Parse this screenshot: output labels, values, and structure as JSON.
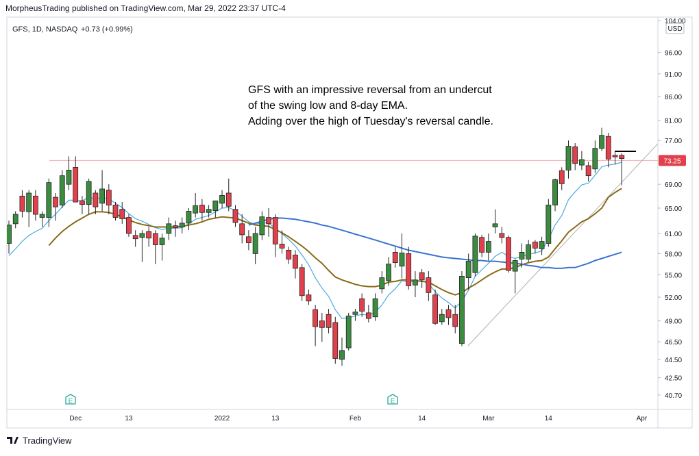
{
  "publisher_line": "MorpheusTrading published on TradingView.com, Mar 29, 2022 23:37 UTC-4",
  "footer_brand": "TradingView",
  "chart_data": {
    "type": "candlestick",
    "symbol_line": "GFS, 1D, NASDAQ",
    "change": "+0.73 (+0.99%)",
    "currency": "USD",
    "annotation": [
      "GFS with an impressive reversal from an undercut",
      "of the swing low and 8-day EMA.",
      "Adding over the high of Tuesday's reversal candle."
    ],
    "earnings_labels": [
      "E",
      "E"
    ],
    "log_scale": true,
    "grid": false,
    "ylim": [
      39.25,
      104.9
    ],
    "yticks": [
      {
        "value": 104,
        "label": "104.00"
      },
      {
        "value": 96,
        "label": "96.00"
      },
      {
        "value": 91,
        "label": "91.00"
      },
      {
        "value": 86,
        "label": "86.00"
      },
      {
        "value": 81,
        "label": "81.00"
      },
      {
        "value": 77,
        "label": "77.00"
      },
      {
        "value": 69,
        "label": "69.00"
      },
      {
        "value": 65,
        "label": "65.00"
      },
      {
        "value": 61,
        "label": "61.00"
      },
      {
        "value": 58,
        "label": "58.00"
      },
      {
        "value": 55,
        "label": "55.00"
      },
      {
        "value": 52,
        "label": "52.00"
      },
      {
        "value": 49,
        "label": "49.00"
      },
      {
        "value": 46.5,
        "label": "46.50"
      },
      {
        "value": 44.5,
        "label": "44.50"
      },
      {
        "value": 42.5,
        "label": "42.50"
      },
      {
        "value": 40.7,
        "label": "40.70"
      }
    ],
    "price_line": 73.25,
    "up_color": "#3b8c3f",
    "down_color": "#e2404c",
    "categories": [
      null,
      null,
      null,
      null,
      null,
      null,
      null,
      null,
      null,
      null,
      "Dec",
      null,
      null,
      null,
      null,
      null,
      null,
      null,
      "13",
      null,
      null,
      null,
      null,
      null,
      null,
      null,
      null,
      null,
      null,
      null,
      null,
      null,
      "2022",
      null,
      null,
      null,
      null,
      null,
      null,
      null,
      "13",
      null,
      null,
      null,
      null,
      null,
      null,
      null,
      null,
      null,
      null,
      null,
      "Feb",
      null,
      null,
      null,
      null,
      null,
      null,
      null,
      null,
      null,
      "14",
      null,
      null,
      null,
      null,
      null,
      null,
      null,
      null,
      null,
      "Mar",
      null,
      null,
      null,
      null,
      null,
      null,
      null,
      null,
      "14",
      null,
      null,
      null,
      null,
      null,
      null,
      null,
      null,
      null,
      null,
      null,
      null,
      null,
      "Apr"
    ],
    "open": [
      59.5,
      62.5,
      67,
      64.4,
      67,
      63.5,
      63.5,
      66.8,
      65.5,
      69,
      72,
      66.2,
      65.6,
      67.5,
      65.8,
      68,
      65.5,
      64.8,
      63.5,
      60.7,
      60.4,
      61.3,
      61,
      59.3,
      61,
      62.2,
      62,
      62.6,
      64.2,
      65.5,
      64.3,
      64.6,
      65.8,
      67.5,
      64.8,
      62.5,
      60.5,
      58,
      60.8,
      63.5,
      63.5,
      59.4,
      58.5,
      57.8,
      56,
      52.3,
      50.4,
      49,
      49.8,
      48.8,
      44.5,
      45.8,
      49.8,
      51.8,
      50,
      49.5,
      53.1,
      54.2,
      58.2,
      56.2,
      58,
      53.6,
      55.3,
      54.6,
      52.3,
      48.9,
      50.4,
      49.8,
      46.3,
      54.6,
      55.3,
      60.4,
      58.2,
      62,
      61,
      60.4,
      55.5,
      57.2,
      57.2,
      59.7,
      58.7,
      59.5,
      65.5,
      71.4,
      71.5,
      75.8,
      72.4,
      72.3,
      71.7,
      75.5,
      77.8,
      74.2,
      74.2,
      null,
      null,
      null
    ],
    "high": [
      63,
      64.5,
      68,
      68,
      68,
      64.5,
      70,
      67.5,
      71.5,
      74,
      74,
      67,
      70,
      68,
      71.5,
      69,
      66,
      66,
      64,
      61.5,
      61.5,
      62,
      61.5,
      61,
      63.5,
      63,
      63.5,
      65,
      67.5,
      66.5,
      65.5,
      66,
      68,
      70,
      65.5,
      64,
      61.5,
      62,
      64.5,
      65,
      64,
      61.5,
      59,
      58.5,
      56.5,
      53,
      51,
      50,
      50.5,
      49.5,
      47,
      50,
      50.5,
      52.5,
      51,
      52.5,
      55.5,
      57.5,
      59,
      61,
      59,
      55.5,
      55.8,
      55.5,
      53,
      50.5,
      51,
      51,
      55.5,
      58,
      61,
      60.8,
      61,
      64.8,
      62,
      60.7,
      57.2,
      59.5,
      60,
      60,
      60.5,
      66.5,
      70,
      72,
      77,
      76.5,
      75,
      73,
      77,
      79.5,
      78.5,
      74.8,
      74.6,
      null,
      null,
      null
    ],
    "low": [
      58,
      61.8,
      63.5,
      62,
      63,
      62,
      62,
      63,
      65,
      68,
      66,
      64,
      64,
      64,
      64.5,
      64,
      63,
      62.5,
      60.5,
      59,
      56.8,
      59,
      56.5,
      57,
      60,
      60.5,
      61,
      61.5,
      63.5,
      63,
      63.5,
      63.5,
      65,
      64.5,
      62,
      59.5,
      58.5,
      56.5,
      60,
      60.5,
      57.5,
      58,
      56.5,
      54.5,
      51.5,
      51,
      46,
      46.5,
      47.5,
      44,
      43.8,
      45.5,
      49,
      49.5,
      48.8,
      49,
      52.5,
      53.5,
      56,
      54.5,
      53,
      52,
      53.2,
      51.5,
      48.5,
      48.5,
      48.5,
      47.5,
      46,
      53,
      54.8,
      57.5,
      57,
      61,
      59.5,
      55.3,
      52.5,
      56,
      56.8,
      58,
      57.8,
      59,
      64.5,
      68,
      70,
      71.5,
      71.5,
      69.5,
      71,
      75,
      72,
      72.5,
      68.8,
      null,
      null,
      null
    ],
    "close": [
      62.3,
      64,
      64.5,
      67.5,
      64,
      64,
      69.3,
      65.2,
      70.5,
      71.5,
      66,
      65.6,
      69.5,
      65.2,
      68.2,
      65.5,
      63.5,
      63.3,
      61,
      60.2,
      61,
      60.3,
      59.3,
      60.3,
      62.5,
      61.9,
      62.6,
      64.5,
      65.4,
      64.3,
      64.8,
      66.2,
      67.1,
      65.3,
      62.7,
      60.8,
      59.6,
      61,
      63.6,
      62.5,
      59.4,
      58.8,
      57.2,
      55.9,
      52.2,
      51.5,
      48.3,
      48.2,
      48.2,
      44.6,
      45.5,
      49.6,
      50.1,
      50.2,
      49.3,
      51.8,
      54.6,
      56.5,
      56.7,
      58.1,
      53.5,
      54.3,
      54.3,
      52.6,
      48.7,
      49.8,
      49.4,
      48.3,
      54.8,
      56.9,
      60.6,
      58.2,
      59.8,
      62.5,
      60.4,
      55.6,
      57,
      58.2,
      59.3,
      58.8,
      59.8,
      65.5,
      69.8,
      69.1,
      75.9,
      72.7,
      73.4,
      70.5,
      75.5,
      78,
      73.5,
      73.9,
      73.6,
      null,
      null,
      null
    ],
    "moving_averages": [
      {
        "color": "#4aa8e0",
        "values": [
          57.7,
          58.7,
          59.8,
          60.7,
          61.3,
          61.8,
          63,
          64,
          65.2,
          66.3,
          66.3,
          66.2,
          66.8,
          66.5,
          66.8,
          66.5,
          65.8,
          65.1,
          64.1,
          63.3,
          62.9,
          62.4,
          61.9,
          61.6,
          61.8,
          61.8,
          61.9,
          62.5,
          63.2,
          63.5,
          63.8,
          64.4,
          65,
          65.1,
          64.6,
          63.7,
          62.8,
          62.4,
          62.7,
          62.6,
          61.8,
          61,
          60.1,
          59.1,
          57.8,
          56.4,
          54.6,
          53.2,
          52.1,
          50.4,
          49.3,
          49.4,
          49.6,
          49.8,
          49.7,
          50.1,
          51,
          52.3,
          53.1,
          54.2,
          54,
          54.1,
          54.2,
          53.8,
          52.7,
          51.9,
          51.3,
          50.6,
          51.5,
          52.9,
          54.8,
          55.7,
          56.6,
          57.6,
          58.2,
          57.6,
          57.3,
          57.6,
          57.9,
          58.1,
          58.4,
          60.1,
          62.3,
          63.8,
          66.4,
          67.7,
          68.9,
          69.2,
          70.6,
          72.1,
          72.4,
          72.6,
          72.9,
          null,
          null,
          null
        ]
      },
      {
        "color": "#8a6a16",
        "values": [
          null,
          null,
          null,
          null,
          null,
          null,
          59.2,
          60.3,
          61.3,
          62.1,
          62.8,
          63.4,
          64,
          64.4,
          64.4,
          64.3,
          64,
          63.6,
          63.1,
          62.7,
          62.4,
          62.2,
          62,
          62,
          62,
          62,
          62.1,
          62.3,
          62.5,
          62.8,
          63.2,
          63.4,
          63.6,
          63.5,
          63.4,
          63,
          62.6,
          62.3,
          62.2,
          62.1,
          61.6,
          61.1,
          60.5,
          59.8,
          59.1,
          58.3,
          57.4,
          56.6,
          55.6,
          54.7,
          54.3,
          54,
          53.7,
          53.5,
          53.4,
          53.4,
          53.6,
          54,
          54.1,
          54.3,
          54.3,
          54.2,
          54.1,
          54,
          53.5,
          53,
          52.6,
          52.3,
          52.6,
          53.2,
          53.7,
          54.3,
          54.9,
          55.4,
          55.8,
          55.8,
          56,
          56.4,
          56.7,
          56.9,
          57,
          57.5,
          58.7,
          59.9,
          61.2,
          62,
          62.8,
          63.3,
          64.1,
          65,
          66.8,
          67.6,
          68.3,
          null,
          null,
          null
        ]
      },
      {
        "color": "#3a73d1",
        "values": [
          null,
          null,
          null,
          null,
          null,
          null,
          null,
          null,
          null,
          null,
          null,
          null,
          null,
          null,
          null,
          null,
          null,
          null,
          null,
          null,
          null,
          null,
          null,
          null,
          null,
          null,
          null,
          null,
          null,
          null,
          null,
          null,
          null,
          null,
          null,
          null,
          62.3,
          62.6,
          62.9,
          63.2,
          63.4,
          63.4,
          63.3,
          63.2,
          63,
          62.8,
          62.6,
          62.3,
          62.1,
          61.8,
          61.5,
          61.2,
          60.9,
          60.6,
          60.3,
          60,
          59.7,
          59.4,
          59.1,
          58.8,
          58.5,
          58.3,
          58.1,
          57.9,
          57.7,
          57.5,
          57.4,
          57.3,
          57.2,
          57.1,
          57,
          57,
          56.9,
          56.9,
          56.8,
          56.7,
          56.6,
          56.5,
          56.3,
          56.2,
          56,
          56,
          55.9,
          55.9,
          56,
          56,
          56.3,
          56.6,
          57,
          57.3,
          57.6,
          57.9,
          58.2,
          null,
          null,
          null
        ]
      }
    ]
  }
}
